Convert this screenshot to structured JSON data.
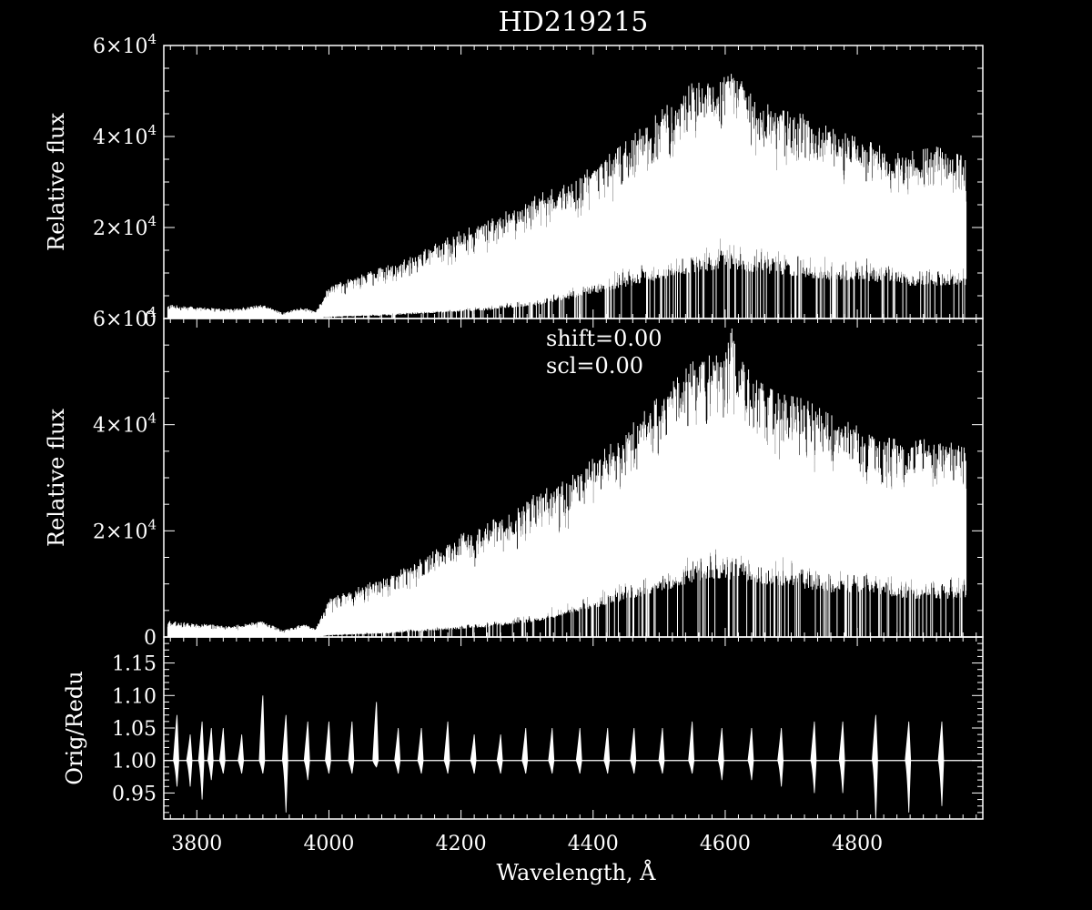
{
  "title": "HD219215",
  "chart_data": [
    {
      "type": "line",
      "panel": "top",
      "title": "HD219215",
      "xlabel": "",
      "ylabel": "Relative flux",
      "xlim": [
        3750,
        4990
      ],
      "ylim": [
        0,
        60000
      ],
      "yticks": [
        {
          "value": 0,
          "label": "0",
          "exp": ""
        },
        {
          "value": 20000,
          "label": "2×10",
          "exp": "4"
        },
        {
          "value": 40000,
          "label": "4×10",
          "exp": "4"
        },
        {
          "value": 60000,
          "label": "6×10",
          "exp": "4"
        }
      ],
      "envelope": {
        "x": [
          3755,
          3800,
          3850,
          3900,
          3930,
          3960,
          3980,
          4000,
          4040,
          4080,
          4120,
          4160,
          4200,
          4240,
          4280,
          4320,
          4360,
          4400,
          4440,
          4480,
          4520,
          4560,
          4600,
          4610,
          4640,
          4680,
          4720,
          4760,
          4800,
          4840,
          4880,
          4920,
          4960
        ],
        "upper": [
          3000,
          2500,
          2000,
          3000,
          1200,
          2500,
          1500,
          7000,
          9000,
          11000,
          13000,
          16000,
          19000,
          21000,
          24000,
          27000,
          29000,
          33000,
          37000,
          42000,
          47000,
          52000,
          52000,
          57000,
          48000,
          45000,
          44000,
          41000,
          39000,
          37000,
          36000,
          37000,
          35000
        ],
        "lower": [
          0,
          0,
          0,
          0,
          0,
          0,
          0,
          500,
          800,
          1000,
          1500,
          2000,
          2500,
          3000,
          4000,
          5000,
          7000,
          9000,
          11000,
          13000,
          15000,
          17000,
          18000,
          18000,
          17000,
          16000,
          15000,
          14000,
          14000,
          13000,
          12000,
          12000,
          12000
        ]
      }
    },
    {
      "type": "line",
      "panel": "middle",
      "xlabel": "",
      "ylabel": "Relative flux",
      "xlim": [
        3750,
        4990
      ],
      "ylim": [
        0,
        60000
      ],
      "annotations": [
        "shift=0.00",
        "scl=0.00"
      ],
      "yticks": [
        {
          "value": 0,
          "label": "0",
          "exp": ""
        },
        {
          "value": 20000,
          "label": "2×10",
          "exp": "4"
        },
        {
          "value": 40000,
          "label": "4×10",
          "exp": "4"
        },
        {
          "value": 60000,
          "label": "6×10",
          "exp": "4"
        }
      ],
      "envelope": {
        "x": [
          3755,
          3800,
          3850,
          3900,
          3930,
          3960,
          3980,
          4000,
          4040,
          4080,
          4120,
          4160,
          4200,
          4240,
          4280,
          4320,
          4360,
          4400,
          4440,
          4480,
          4520,
          4560,
          4600,
          4610,
          4640,
          4680,
          4720,
          4760,
          4800,
          4840,
          4880,
          4920,
          4960
        ],
        "upper": [
          3000,
          2500,
          2000,
          3000,
          1200,
          2500,
          1500,
          7000,
          9000,
          11000,
          13000,
          16000,
          19000,
          21000,
          24000,
          27000,
          29000,
          33000,
          37000,
          42000,
          47000,
          52000,
          52000,
          57000,
          48000,
          45000,
          44000,
          41000,
          39000,
          37000,
          36000,
          37000,
          35000
        ],
        "lower": [
          0,
          0,
          0,
          0,
          0,
          0,
          0,
          500,
          800,
          1000,
          1500,
          2000,
          2500,
          3000,
          4000,
          5000,
          7000,
          9000,
          11000,
          13000,
          15000,
          17000,
          18000,
          18000,
          17000,
          16000,
          15000,
          14000,
          14000,
          13000,
          12000,
          12000,
          12000
        ]
      }
    },
    {
      "type": "line",
      "panel": "bottom",
      "xlabel": "Wavelength, Å",
      "ylabel": "Orig/Redu",
      "xlim": [
        3750,
        4990
      ],
      "ylim": [
        0.91,
        1.19
      ],
      "xticks": [
        3800,
        4000,
        4200,
        4400,
        4600,
        4800
      ],
      "yticks": [
        {
          "value": 0.95,
          "label": "0.95"
        },
        {
          "value": 1.0,
          "label": "1.00"
        },
        {
          "value": 1.05,
          "label": "1.05"
        },
        {
          "value": 1.1,
          "label": "1.10"
        },
        {
          "value": 1.15,
          "label": "1.15"
        }
      ],
      "baseline": 1.0,
      "order_edges": [
        3770,
        3790,
        3808,
        3822,
        3840,
        3868,
        3900,
        3935,
        3968,
        4000,
        4035,
        4072,
        4105,
        4140,
        4180,
        4220,
        4260,
        4298,
        4338,
        4380,
        4422,
        4462,
        4505,
        4550,
        4595,
        4640,
        4685,
        4735,
        4778,
        4828,
        4878,
        4928
      ],
      "order_max": [
        1.07,
        1.04,
        1.06,
        1.05,
        1.05,
        1.04,
        1.1,
        1.07,
        1.06,
        1.06,
        1.06,
        1.09,
        1.05,
        1.05,
        1.06,
        1.04,
        1.04,
        1.05,
        1.05,
        1.05,
        1.05,
        1.05,
        1.05,
        1.06,
        1.05,
        1.05,
        1.05,
        1.06,
        1.06,
        1.07,
        1.06,
        1.06
      ],
      "order_min": [
        0.96,
        0.96,
        0.94,
        0.97,
        0.98,
        0.98,
        0.98,
        0.92,
        0.97,
        0.98,
        0.98,
        0.99,
        0.98,
        0.98,
        0.98,
        0.98,
        0.98,
        0.98,
        0.98,
        0.98,
        0.98,
        0.98,
        0.98,
        0.98,
        0.97,
        0.97,
        0.96,
        0.95,
        0.95,
        0.91,
        0.92,
        0.93
      ]
    }
  ]
}
